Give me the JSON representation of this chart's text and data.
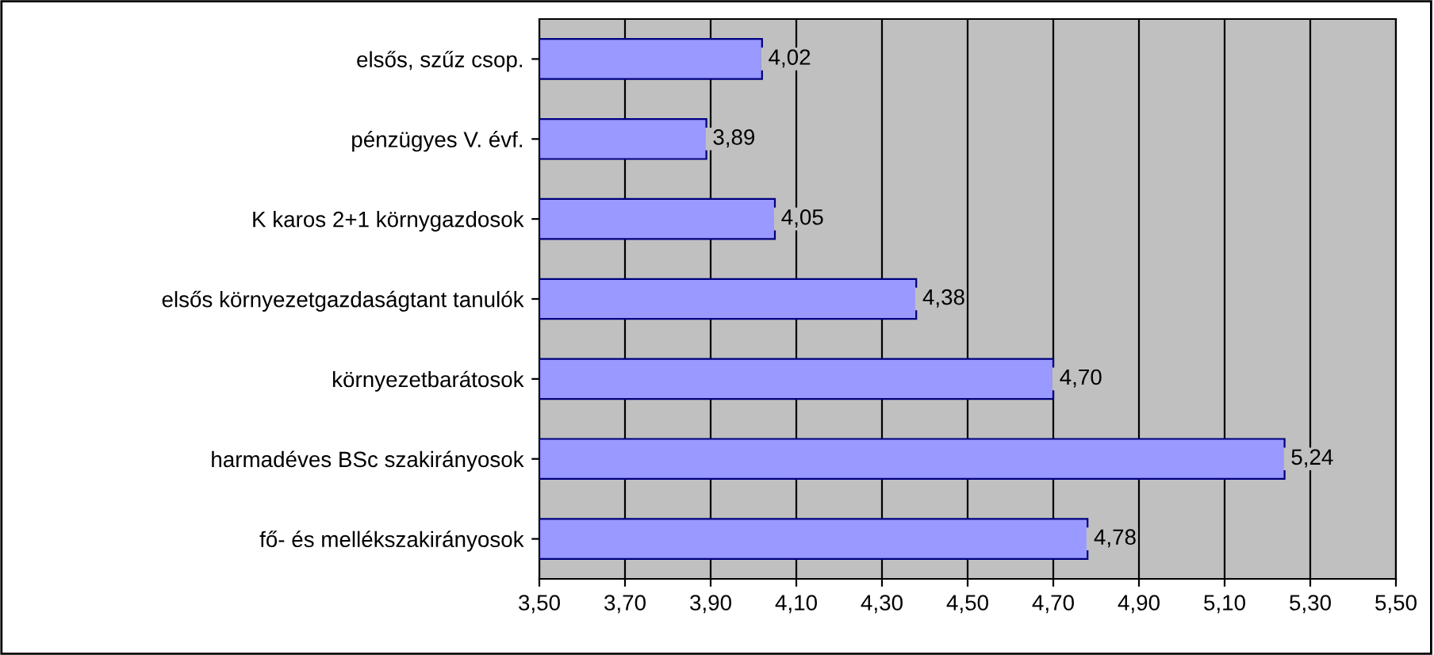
{
  "chart_data": {
    "type": "bar",
    "orientation": "horizontal",
    "categories": [
      "elsős, szűz csop.",
      "pénzügyes V. évf.",
      "K karos 2+1 környgazdosok",
      "elsős környezetgazdaságtant tanulók",
      "környezetbarátosok",
      "harmadéves BSc szakirányosok",
      "fő- és mellékszakirányosok"
    ],
    "values": [
      4.02,
      3.89,
      4.05,
      4.38,
      4.7,
      5.24,
      4.78
    ],
    "value_labels": [
      "4,02",
      "3,89",
      "4,05",
      "4,38",
      "4,70",
      "5,24",
      "4,78"
    ],
    "color": "#9999ff",
    "xlim": [
      3.5,
      5.5
    ],
    "xticks": [
      {
        "value": 3.5,
        "label": "3,50"
      },
      {
        "value": 3.7,
        "label": "3,70"
      },
      {
        "value": 3.9,
        "label": "3,90"
      },
      {
        "value": 4.1,
        "label": "4,10"
      },
      {
        "value": 4.3,
        "label": "4,30"
      },
      {
        "value": 4.5,
        "label": "4,50"
      },
      {
        "value": 4.7,
        "label": "4,70"
      },
      {
        "value": 4.9,
        "label": "4,90"
      },
      {
        "value": 5.1,
        "label": "5,10"
      },
      {
        "value": 5.3,
        "label": "5,30"
      },
      {
        "value": 5.5,
        "label": "5,50"
      }
    ],
    "grid": "x",
    "legend": false
  }
}
